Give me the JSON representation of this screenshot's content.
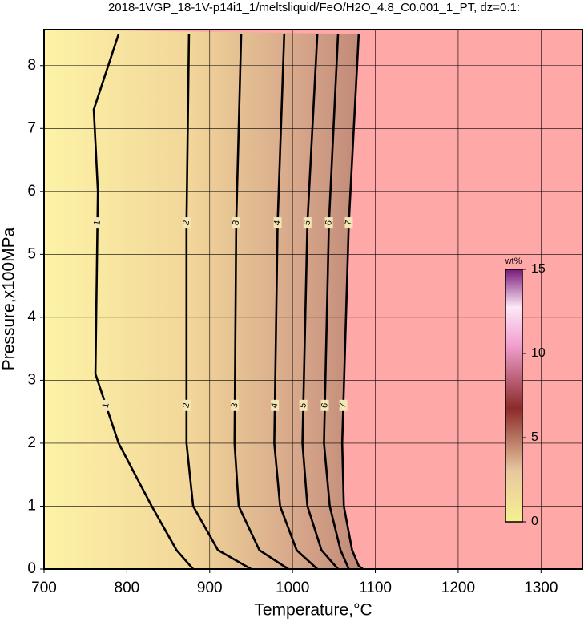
{
  "chart_data": {
    "type": "contour",
    "title": "2018-1VGP_18-1V-p14i1_1/meltsliquid/FeO/H2O_4.8_C0.001_1_PT, dz=0.1:",
    "x_label": "Temperature,°C",
    "y_label": "Pressure,x100MPa",
    "xlim": [
      700,
      1350
    ],
    "ylim": [
      0,
      8.57
    ],
    "xticks": [
      700,
      800,
      900,
      1000,
      1100,
      1200,
      1300
    ],
    "yticks": [
      0,
      1,
      2,
      3,
      4,
      5,
      6,
      7,
      8
    ],
    "grid": true,
    "contours": [
      {
        "level": 1,
        "x": [
          790,
          760,
          765,
          762,
          790,
          830,
          860,
          880
        ],
        "y": [
          8.5,
          7.3,
          6,
          3.1,
          2,
          1,
          0.3,
          0
        ]
      },
      {
        "level": 2,
        "x": [
          875,
          872,
          872,
          880,
          910,
          950
        ],
        "y": [
          8.5,
          5.5,
          2,
          1,
          0.3,
          0
        ]
      },
      {
        "level": 3,
        "x": [
          938,
          932,
          930,
          935,
          960,
          995
        ],
        "y": [
          8.5,
          5.5,
          2,
          1,
          0.3,
          0
        ]
      },
      {
        "level": 4,
        "x": [
          990,
          982,
          978,
          985,
          1005,
          1030
        ],
        "y": [
          8.5,
          5.5,
          2,
          1,
          0.3,
          0
        ]
      },
      {
        "level": 5,
        "x": [
          1030,
          1018,
          1012,
          1018,
          1035,
          1055
        ],
        "y": [
          8.5,
          5.5,
          2,
          1,
          0.3,
          0
        ]
      },
      {
        "level": 6,
        "x": [
          1055,
          1044,
          1038,
          1045,
          1058,
          1068
        ],
        "y": [
          8.5,
          5.5,
          2,
          1,
          0.3,
          0
        ]
      },
      {
        "level": 7,
        "x": [
          1080,
          1068,
          1060,
          1062,
          1072,
          1080,
          1085
        ],
        "y": [
          8.5,
          5.5,
          2,
          1,
          0.3,
          0.05,
          0
        ]
      }
    ],
    "colorbar": {
      "title": "wt%",
      "lim": [
        0,
        15
      ],
      "ticks": [
        0,
        5,
        10,
        15
      ]
    }
  }
}
